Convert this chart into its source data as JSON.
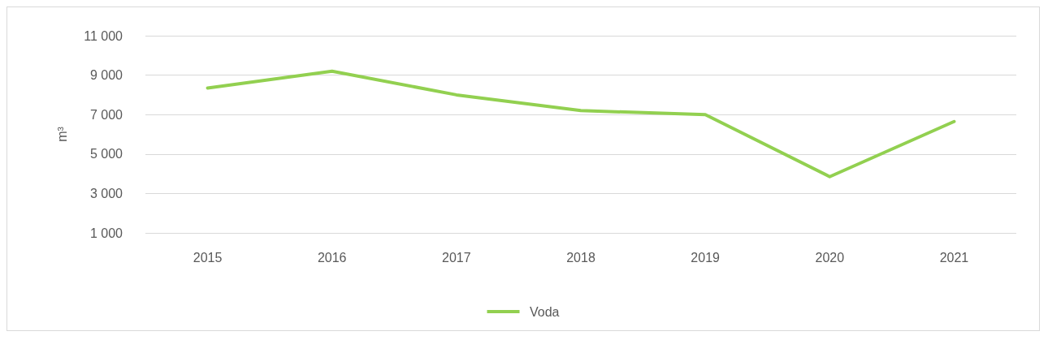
{
  "chart_data": {
    "type": "line",
    "ylabel": "m³",
    "categories": [
      "2015",
      "2016",
      "2017",
      "2018",
      "2019",
      "2020",
      "2021"
    ],
    "series": [
      {
        "name": "Voda",
        "color": "#92d050",
        "values": [
          8350,
          9200,
          8000,
          7200,
          7000,
          3850,
          6650
        ]
      }
    ],
    "ylim": [
      1000,
      11000
    ],
    "yticks": [
      {
        "value": 1000,
        "label": "1 000"
      },
      {
        "value": 3000,
        "label": "3 000"
      },
      {
        "value": 5000,
        "label": "5 000"
      },
      {
        "value": 7000,
        "label": "7 000"
      },
      {
        "value": 9000,
        "label": "9 000"
      },
      {
        "value": 11000,
        "label": "11 000"
      }
    ],
    "grid": "y",
    "legend": "bottom",
    "marker": "none",
    "line_style": "solid"
  }
}
